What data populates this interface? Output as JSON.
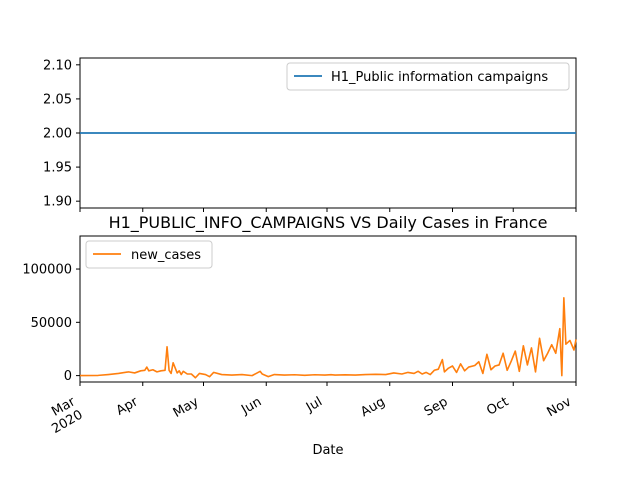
{
  "chart_data": [
    {
      "type": "line",
      "title": "",
      "xlabel": "",
      "ylabel": "",
      "ylim": [
        1.89,
        2.11
      ],
      "yticks": [
        "1.90",
        "1.95",
        "2.00",
        "2.05",
        "2.10"
      ],
      "ytick_values": [
        1.9,
        1.95,
        2.0,
        2.05,
        2.1
      ],
      "legend_position": "top-right",
      "series": [
        {
          "name": "H1_Public information campaigns",
          "color": "#1f77b4",
          "x": [
            "2020-03-01",
            "2020-11-01"
          ],
          "values": [
            2,
            2
          ]
        }
      ]
    },
    {
      "type": "line",
      "title": "H1_PUBLIC_INFO_CAMPAIGNS VS Daily Cases in France",
      "xlabel": "Date",
      "ylabel": "",
      "ylim": [
        -6000,
        131000
      ],
      "yticks": [
        "0",
        "50000",
        "100000"
      ],
      "ytick_values": [
        0,
        50000,
        100000
      ],
      "xlim": [
        "2020-03-01",
        "2020-11-01"
      ],
      "xtick_labels": [
        "Mar\n2020",
        "Apr",
        "May",
        "Jun",
        "Jul",
        "Aug",
        "Sep",
        "Oct",
        "Nov"
      ],
      "xtick_dates": [
        "2020-03-01",
        "2020-04-01",
        "2020-05-01",
        "2020-06-01",
        "2020-07-01",
        "2020-08-01",
        "2020-09-01",
        "2020-10-01",
        "2020-11-01"
      ],
      "legend_position": "top-left",
      "series": [
        {
          "name": "new_cases",
          "color": "#ff7f0e",
          "x": [
            "2020-03-01",
            "2020-03-10",
            "2020-03-15",
            "2020-03-20",
            "2020-03-25",
            "2020-03-28",
            "2020-03-31",
            "2020-04-02",
            "2020-04-03",
            "2020-04-04",
            "2020-04-06",
            "2020-04-08",
            "2020-04-10",
            "2020-04-12",
            "2020-04-13",
            "2020-04-14",
            "2020-04-15",
            "2020-04-16",
            "2020-04-18",
            "2020-04-19",
            "2020-04-20",
            "2020-04-21",
            "2020-04-23",
            "2020-04-25",
            "2020-04-27",
            "2020-04-29",
            "2020-05-02",
            "2020-05-04",
            "2020-05-06",
            "2020-05-10",
            "2020-05-15",
            "2020-05-20",
            "2020-05-25",
            "2020-05-29",
            "2020-05-30",
            "2020-06-02",
            "2020-06-05",
            "2020-06-10",
            "2020-06-15",
            "2020-06-20",
            "2020-06-25",
            "2020-06-30",
            "2020-07-03",
            "2020-07-05",
            "2020-07-10",
            "2020-07-15",
            "2020-07-20",
            "2020-07-25",
            "2020-07-30",
            "2020-08-03",
            "2020-08-07",
            "2020-08-10",
            "2020-08-13",
            "2020-08-15",
            "2020-08-17",
            "2020-08-19",
            "2020-08-21",
            "2020-08-23",
            "2020-08-25",
            "2020-08-27",
            "2020-08-28",
            "2020-08-30",
            "2020-09-01",
            "2020-09-03",
            "2020-09-05",
            "2020-09-07",
            "2020-09-09",
            "2020-09-12",
            "2020-09-14",
            "2020-09-16",
            "2020-09-18",
            "2020-09-20",
            "2020-09-22",
            "2020-09-24",
            "2020-09-26",
            "2020-09-28",
            "2020-09-30",
            "2020-10-02",
            "2020-10-04",
            "2020-10-06",
            "2020-10-08",
            "2020-10-10",
            "2020-10-12",
            "2020-10-14",
            "2020-10-16",
            "2020-10-18",
            "2020-10-20",
            "2020-10-22",
            "2020-10-24",
            "2020-10-25",
            "2020-10-26",
            "2020-10-27",
            "2020-10-29",
            "2020-10-31",
            "2020-11-01"
          ],
          "values": [
            0,
            200,
            1000,
            2000,
            3500,
            2500,
            4500,
            5000,
            8000,
            4500,
            5500,
            3500,
            4500,
            5000,
            27000,
            5000,
            2000,
            12000,
            2500,
            4500,
            1000,
            4000,
            1500,
            1500,
            -2000,
            2000,
            1000,
            -1000,
            3000,
            1000,
            500,
            1000,
            0,
            4000,
            1500,
            -1000,
            1000,
            500,
            800,
            300,
            800,
            500,
            900,
            500,
            700,
            500,
            1000,
            1200,
            1000,
            2500,
            1500,
            3000,
            2000,
            4000,
            1500,
            3000,
            1000,
            5000,
            6000,
            15000,
            3500,
            7000,
            9000,
            3000,
            11000,
            4500,
            8000,
            9500,
            13000,
            2000,
            20000,
            5500,
            9000,
            10000,
            21000,
            5000,
            13500,
            23000,
            4000,
            28000,
            10000,
            26000,
            3500,
            35000,
            14000,
            21000,
            29000,
            21000,
            44000,
            0,
            73000,
            29500,
            33000,
            24000,
            34000
          ]
        }
      ]
    }
  ]
}
